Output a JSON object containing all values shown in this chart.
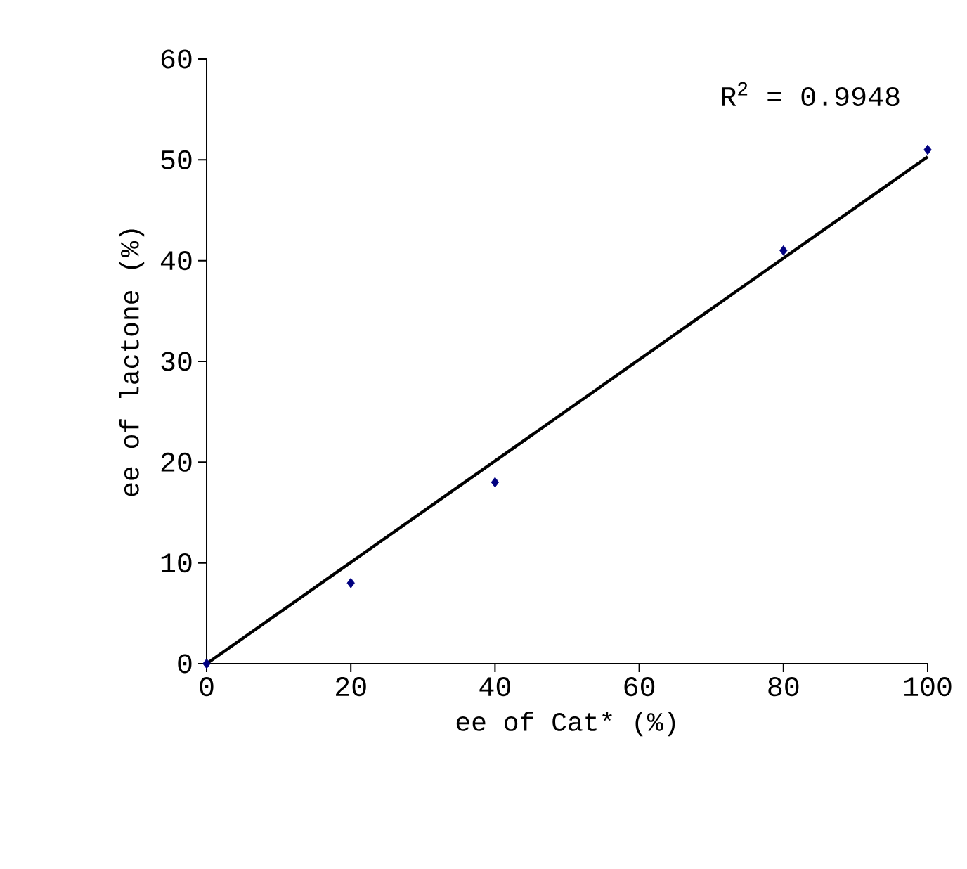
{
  "chart_data": {
    "type": "scatter",
    "xlabel": "ee of Cat* (%)",
    "ylabel": "ee of lactone (%)",
    "annotations": [
      "R$^{2}$ = 0.9948"
    ],
    "xlim": [
      0,
      100
    ],
    "ylim": [
      0,
      60
    ],
    "xticks": [
      0,
      20,
      40,
      60,
      80,
      100
    ],
    "yticks": [
      0,
      10,
      20,
      30,
      40,
      50,
      60
    ],
    "grid": false,
    "series": [
      {
        "color": "#000080",
        "marker": "diamond",
        "x": [
          0,
          20,
          40,
          80,
          100
        ],
        "values": [
          0,
          8,
          18,
          41,
          51
        ]
      },
      {
        "type": "line",
        "color": "#000000",
        "marker": "none",
        "line_style": "solid",
        "x": [
          0,
          100
        ],
        "values": [
          0,
          50.3
        ]
      }
    ]
  }
}
